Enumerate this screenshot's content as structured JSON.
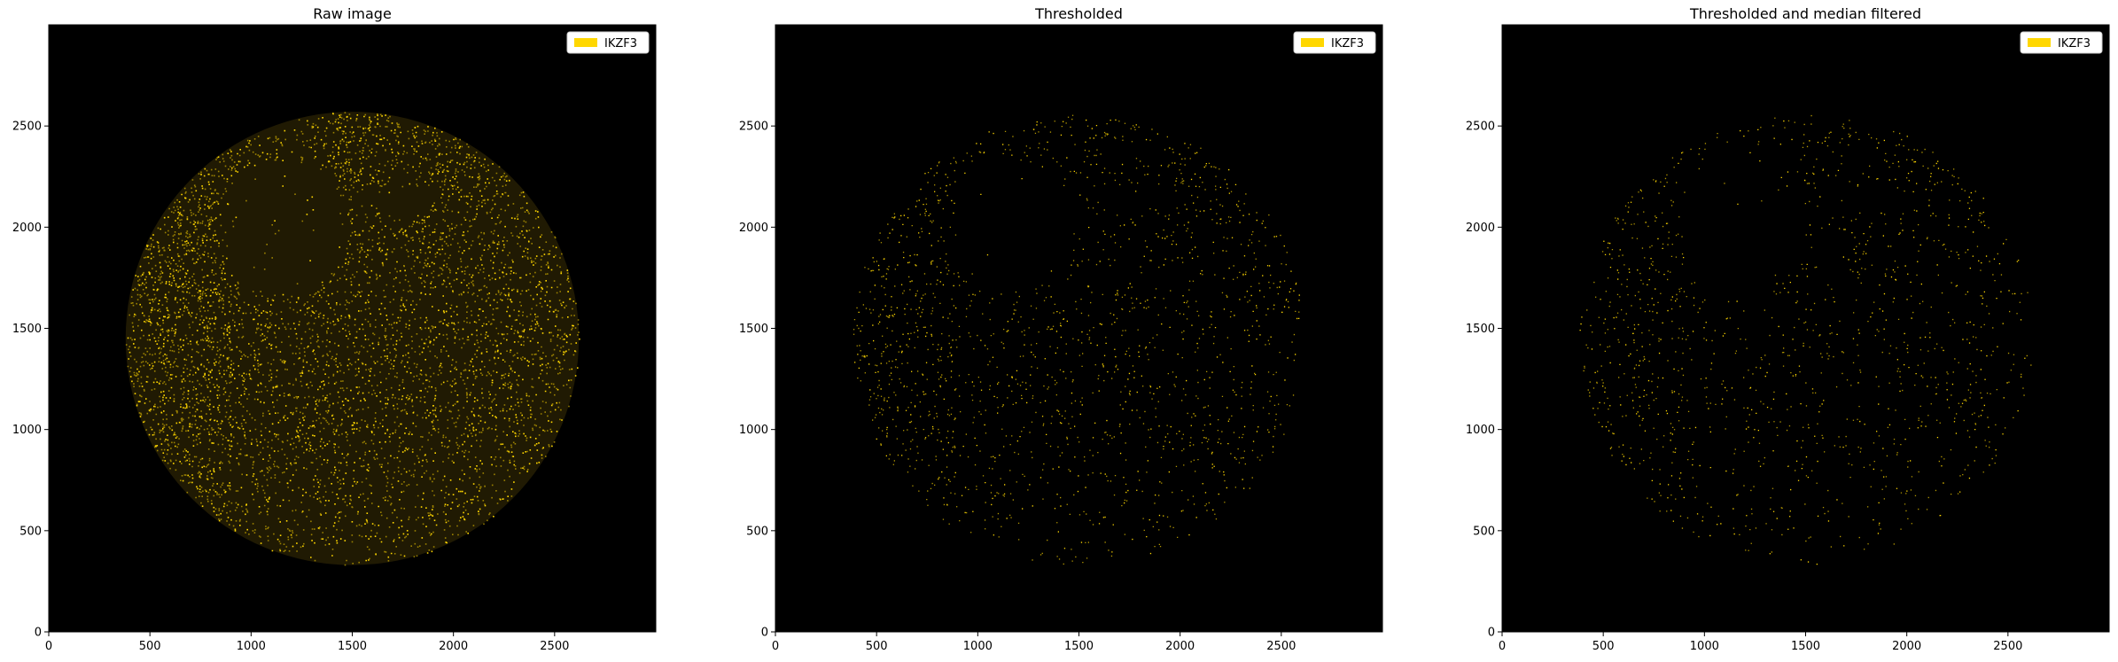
{
  "figure": {
    "panel_titles": [
      "Raw image",
      "Thresholded",
      "Thresholded and median filtered"
    ]
  },
  "chart_data": [
    {
      "type": "heatmap",
      "title": "Raw image",
      "xlim": [
        0,
        3000
      ],
      "ylim": [
        0,
        3000
      ],
      "xticks": [
        0,
        500,
        1000,
        1500,
        2000,
        2500
      ],
      "yticks": [
        0,
        500,
        1000,
        1500,
        2000,
        2500
      ],
      "legend": {
        "entries": [
          {
            "label": "IKZF3",
            "color": "#FFD700"
          }
        ],
        "loc": "upper right"
      },
      "background_color": "#000000",
      "tissue_region": {
        "center": [
          1500,
          1450
        ],
        "radius": 1120
      },
      "signal_density": "high"
    },
    {
      "type": "heatmap",
      "title": "Thresholded",
      "xlim": [
        0,
        3000
      ],
      "ylim": [
        0,
        3000
      ],
      "xticks": [
        0,
        500,
        1000,
        1500,
        2000,
        2500
      ],
      "yticks": [
        0,
        500,
        1000,
        1500,
        2000,
        2500
      ],
      "legend": {
        "entries": [
          {
            "label": "IKZF3",
            "color": "#FFD700"
          }
        ],
        "loc": "upper right"
      },
      "background_color": "#000000",
      "tissue_region": {
        "center": [
          1500,
          1450
        ],
        "radius": 1120
      },
      "signal_density": "medium"
    },
    {
      "type": "heatmap",
      "title": "Thresholded and median filtered",
      "xlim": [
        0,
        3000
      ],
      "ylim": [
        0,
        3000
      ],
      "xticks": [
        0,
        500,
        1000,
        1500,
        2000,
        2500
      ],
      "yticks": [
        0,
        500,
        1000,
        1500,
        2000,
        2500
      ],
      "legend": {
        "entries": [
          {
            "label": "IKZF3",
            "color": "#FFD700"
          }
        ],
        "loc": "upper right"
      },
      "background_color": "#000000",
      "tissue_region": {
        "center": [
          1500,
          1450
        ],
        "radius": 1120
      },
      "signal_density": "low"
    }
  ]
}
